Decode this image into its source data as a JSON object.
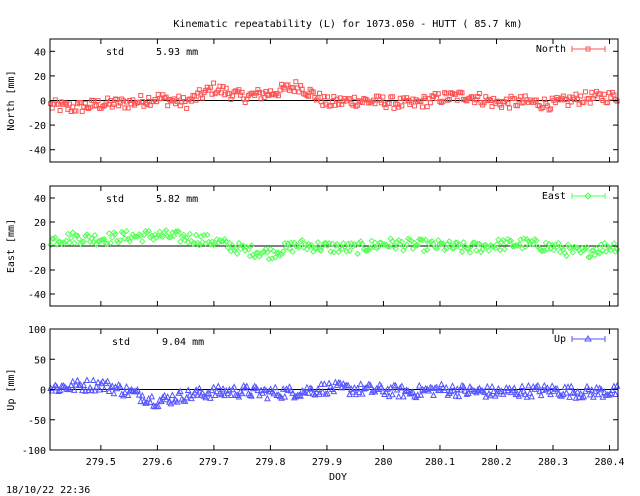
{
  "title": "Kinematic repeatability (L) for 1073.050 - HUTT  ( 85.7 km)",
  "timestamp": "18/10/22 22:36",
  "xlabel": "DOY",
  "x_ticks": [
    "279.5",
    "279.6",
    "279.7",
    "279.8",
    "279.9",
    "280",
    "280.1",
    "280.2",
    "280.3",
    "280.4"
  ],
  "x_tick_values": [
    279.5,
    279.6,
    279.7,
    279.8,
    279.9,
    280.0,
    280.1,
    280.2,
    280.3,
    280.4
  ],
  "xlim": [
    279.41,
    280.415
  ],
  "panels": [
    {
      "ylabel": "North [mm]",
      "std_label": "std",
      "std_value": "5.93 mm",
      "legend": "North",
      "color": "#ff5555",
      "marker": "square",
      "ylim": [
        -50,
        50
      ],
      "y_ticks": [
        "40",
        "20",
        "0",
        "-20",
        "-40"
      ],
      "y_tick_values": [
        40,
        20,
        0,
        -20,
        -40
      ]
    },
    {
      "ylabel": "East [mm]",
      "std_label": "std",
      "std_value": "5.82 mm",
      "legend": "East",
      "color": "#55ff55",
      "marker": "diamond",
      "ylim": [
        -50,
        50
      ],
      "y_ticks": [
        "40",
        "20",
        "0",
        "-20",
        "-40"
      ],
      "y_tick_values": [
        40,
        20,
        0,
        -20,
        -40
      ]
    },
    {
      "ylabel": "Up [mm]",
      "std_label": "std",
      "std_value": "9.04 mm",
      "legend": "Up",
      "color": "#5555ff",
      "marker": "triangle",
      "ylim": [
        -100,
        100
      ],
      "y_ticks": [
        "100",
        "50",
        "0",
        "-50",
        "-100"
      ],
      "y_tick_values": [
        100,
        50,
        0,
        -50,
        -100
      ]
    }
  ],
  "chart_data": [
    {
      "type": "scatter",
      "title": "Kinematic repeatability (L) for 1073.050 - HUTT  ( 85.7 km)",
      "xlabel": "",
      "ylabel": "North [mm]",
      "ylim": [
        -50,
        50
      ],
      "series": [
        {
          "name": "North",
          "x": [
            279.41,
            279.45,
            279.5,
            279.55,
            279.6,
            279.65,
            279.7,
            279.75,
            279.8,
            279.85,
            279.9,
            279.95,
            280.0,
            280.05,
            280.1,
            280.15,
            280.2,
            280.25,
            280.3,
            280.35,
            280.4
          ],
          "y": [
            -4,
            -6,
            -3,
            -2,
            2,
            -2,
            10,
            3,
            6,
            12,
            -2,
            0,
            -1,
            -3,
            2,
            4,
            -2,
            -1,
            -3,
            2,
            3
          ]
        }
      ]
    },
    {
      "type": "scatter",
      "xlabel": "",
      "ylabel": "East [mm]",
      "ylim": [
        -50,
        50
      ],
      "series": [
        {
          "name": "East",
          "x": [
            279.41,
            279.45,
            279.5,
            279.55,
            279.6,
            279.65,
            279.7,
            279.75,
            279.8,
            279.85,
            279.9,
            279.95,
            280.0,
            280.05,
            280.1,
            280.15,
            280.2,
            280.25,
            280.3,
            280.35,
            280.4
          ],
          "y": [
            5,
            7,
            6,
            8,
            9,
            7,
            4,
            -3,
            -6,
            1,
            -1,
            -2,
            2,
            1,
            0,
            -2,
            1,
            2,
            -1,
            -6,
            0
          ]
        }
      ]
    },
    {
      "type": "scatter",
      "xlabel": "DOY",
      "ylabel": "Up [mm]",
      "ylim": [
        -100,
        100
      ],
      "series": [
        {
          "name": "Up",
          "x": [
            279.41,
            279.45,
            279.5,
            279.55,
            279.6,
            279.65,
            279.7,
            279.75,
            279.8,
            279.85,
            279.9,
            279.95,
            280.0,
            280.05,
            280.1,
            280.15,
            280.2,
            280.25,
            280.3,
            280.35,
            280.4
          ],
          "y": [
            2,
            5,
            8,
            -4,
            -20,
            -10,
            -5,
            -3,
            -6,
            -4,
            2,
            0,
            -2,
            -5,
            0,
            -3,
            -5,
            -3,
            -2,
            -5,
            -4
          ]
        }
      ]
    }
  ]
}
